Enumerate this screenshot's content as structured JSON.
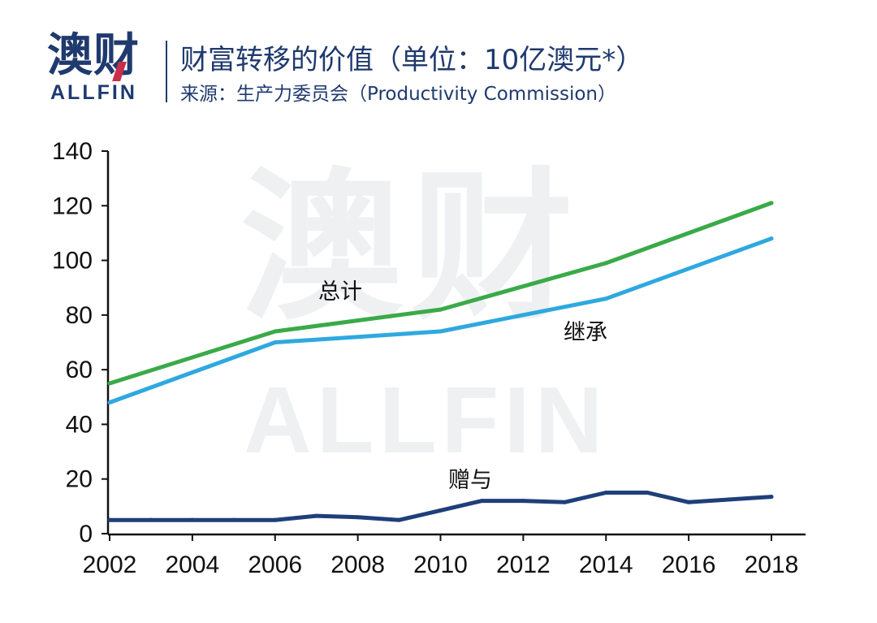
{
  "header": {
    "logo_cn": "澳财",
    "logo_en": "ALLFIN",
    "title": "财富转移的价值（单位：10亿澳元*）",
    "subtitle": "来源：生产力委员会（Productivity Commission）"
  },
  "watermark": {
    "cn": "澳财",
    "en": "ALLFIN"
  },
  "colors": {
    "total": "#3aaa48",
    "inherit": "#2fa8e0",
    "gift": "#1f3f7a",
    "axis": "#111111",
    "brand": "#1f3a6e"
  },
  "chart_data": {
    "type": "line",
    "title": "",
    "xlabel": "",
    "ylabel": "",
    "xlim": [
      2002,
      2018
    ],
    "ylim": [
      0,
      140
    ],
    "xticks": [
      "2002",
      "2004",
      "2006",
      "2008",
      "2010",
      "2012",
      "2014",
      "2016",
      "2018"
    ],
    "yticks": [
      "0",
      "20",
      "40",
      "60",
      "80",
      "100",
      "120",
      "140"
    ],
    "grid": false,
    "series": [
      {
        "name": "总计",
        "x": [
          2002,
          2006,
          2010,
          2014,
          2018
        ],
        "values": [
          55,
          74,
          82,
          99,
          121
        ]
      },
      {
        "name": "继承",
        "x": [
          2002,
          2006,
          2010,
          2014,
          2018
        ],
        "values": [
          48,
          70,
          74,
          86,
          108
        ]
      },
      {
        "name": "赠与",
        "x": [
          2002,
          2003,
          2004,
          2005,
          2006,
          2007,
          2008,
          2009,
          2010,
          2011,
          2012,
          2013,
          2014,
          2015,
          2016,
          2017,
          2018
        ],
        "values": [
          5,
          5,
          5,
          5,
          5,
          6.5,
          6,
          5,
          8.5,
          12,
          12,
          11.5,
          15,
          15,
          11.5,
          12.5,
          13.5
        ]
      }
    ]
  }
}
